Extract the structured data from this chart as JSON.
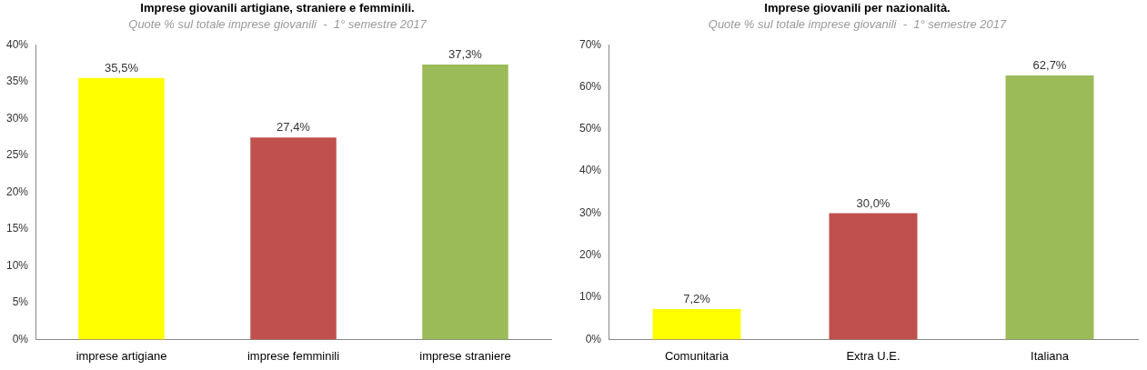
{
  "chart_data": [
    {
      "type": "bar",
      "title": "Imprese giovanili artigiane, straniere e femminili.",
      "subtitle": "Quote % sul totale imprese giovanili  -  1° semestre 2017",
      "categories": [
        "imprese artigiane",
        "imprese femminili",
        "imprese straniere"
      ],
      "values": [
        35.5,
        27.4,
        37.3
      ],
      "colors": [
        "#ffff00",
        "#c0504d",
        "#9bbb59"
      ],
      "value_labels": [
        "35,5%",
        "27,4%",
        "37,3%"
      ],
      "ylim": [
        0,
        40
      ],
      "yticks": [
        {
          "value": 0,
          "label": "0%"
        },
        {
          "value": 5,
          "label": "5%"
        },
        {
          "value": 10,
          "label": "10%"
        },
        {
          "value": 15,
          "label": "15%"
        },
        {
          "value": 20,
          "label": "20%"
        },
        {
          "value": 25,
          "label": "25%"
        },
        {
          "value": 30,
          "label": "30%"
        },
        {
          "value": 35,
          "label": "35%"
        },
        {
          "value": 40,
          "label": "40%"
        }
      ],
      "grid": false,
      "legend": false
    },
    {
      "type": "bar",
      "title": "Imprese giovanili per nazionalità.",
      "subtitle": "Quote % sul totale imprese giovanili  -  1° semestre 2017",
      "categories": [
        "Comunitaria",
        "Extra U.E.",
        "Italiana"
      ],
      "values": [
        7.2,
        30.0,
        62.7
      ],
      "colors": [
        "#ffff00",
        "#c0504d",
        "#9bbb59"
      ],
      "value_labels": [
        "7,2%",
        "30,0%",
        "62,7%"
      ],
      "ylim": [
        0,
        70
      ],
      "yticks": [
        {
          "value": 0,
          "label": "0%"
        },
        {
          "value": 10,
          "label": "10%"
        },
        {
          "value": 20,
          "label": "20%"
        },
        {
          "value": 30,
          "label": "30%"
        },
        {
          "value": 40,
          "label": "40%"
        },
        {
          "value": 50,
          "label": "50%"
        },
        {
          "value": 60,
          "label": "60%"
        },
        {
          "value": 70,
          "label": "70%"
        }
      ],
      "grid": false,
      "legend": false
    }
  ]
}
